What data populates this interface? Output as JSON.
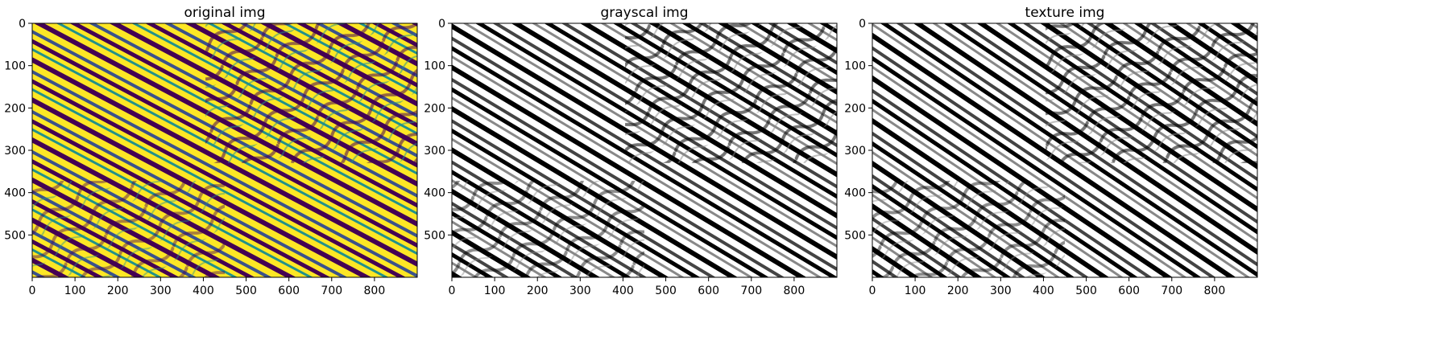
{
  "figure": {
    "background": "#ffffff"
  },
  "chart_data": [
    {
      "type": "heatmap",
      "title": "original img",
      "colormap": "viridis",
      "colors": [
        "#440154",
        "#3b528b",
        "#21918c",
        "#5ec962",
        "#fde725"
      ],
      "image_width": 900,
      "image_height": 600,
      "xlim": [
        0,
        900
      ],
      "ylim": [
        600,
        0
      ],
      "xticks": [
        0,
        100,
        200,
        300,
        400,
        500,
        600,
        700,
        800
      ],
      "yticks": [
        0,
        100,
        200,
        300,
        400,
        500
      ],
      "grid": false
    },
    {
      "type": "heatmap",
      "title": "grayscal img",
      "colormap": "gray",
      "colors": [
        "#000000",
        "#444444",
        "#888888",
        "#cccccc",
        "#ffffff"
      ],
      "image_width": 900,
      "image_height": 600,
      "xlim": [
        0,
        900
      ],
      "ylim": [
        600,
        0
      ],
      "xticks": [
        0,
        100,
        200,
        300,
        400,
        500,
        600,
        700,
        800
      ],
      "yticks": [
        0,
        100,
        200,
        300,
        400,
        500
      ],
      "grid": false
    },
    {
      "type": "heatmap",
      "title": "texture img",
      "colormap": "gray",
      "colors": [
        "#000000",
        "#444444",
        "#888888",
        "#cccccc",
        "#ffffff"
      ],
      "image_width": 900,
      "image_height": 600,
      "xlim": [
        0,
        900
      ],
      "ylim": [
        600,
        0
      ],
      "xticks": [
        0,
        100,
        200,
        300,
        400,
        500,
        600,
        700,
        800
      ],
      "yticks": [
        0,
        100,
        200,
        300,
        400,
        500
      ],
      "grid": false
    }
  ]
}
